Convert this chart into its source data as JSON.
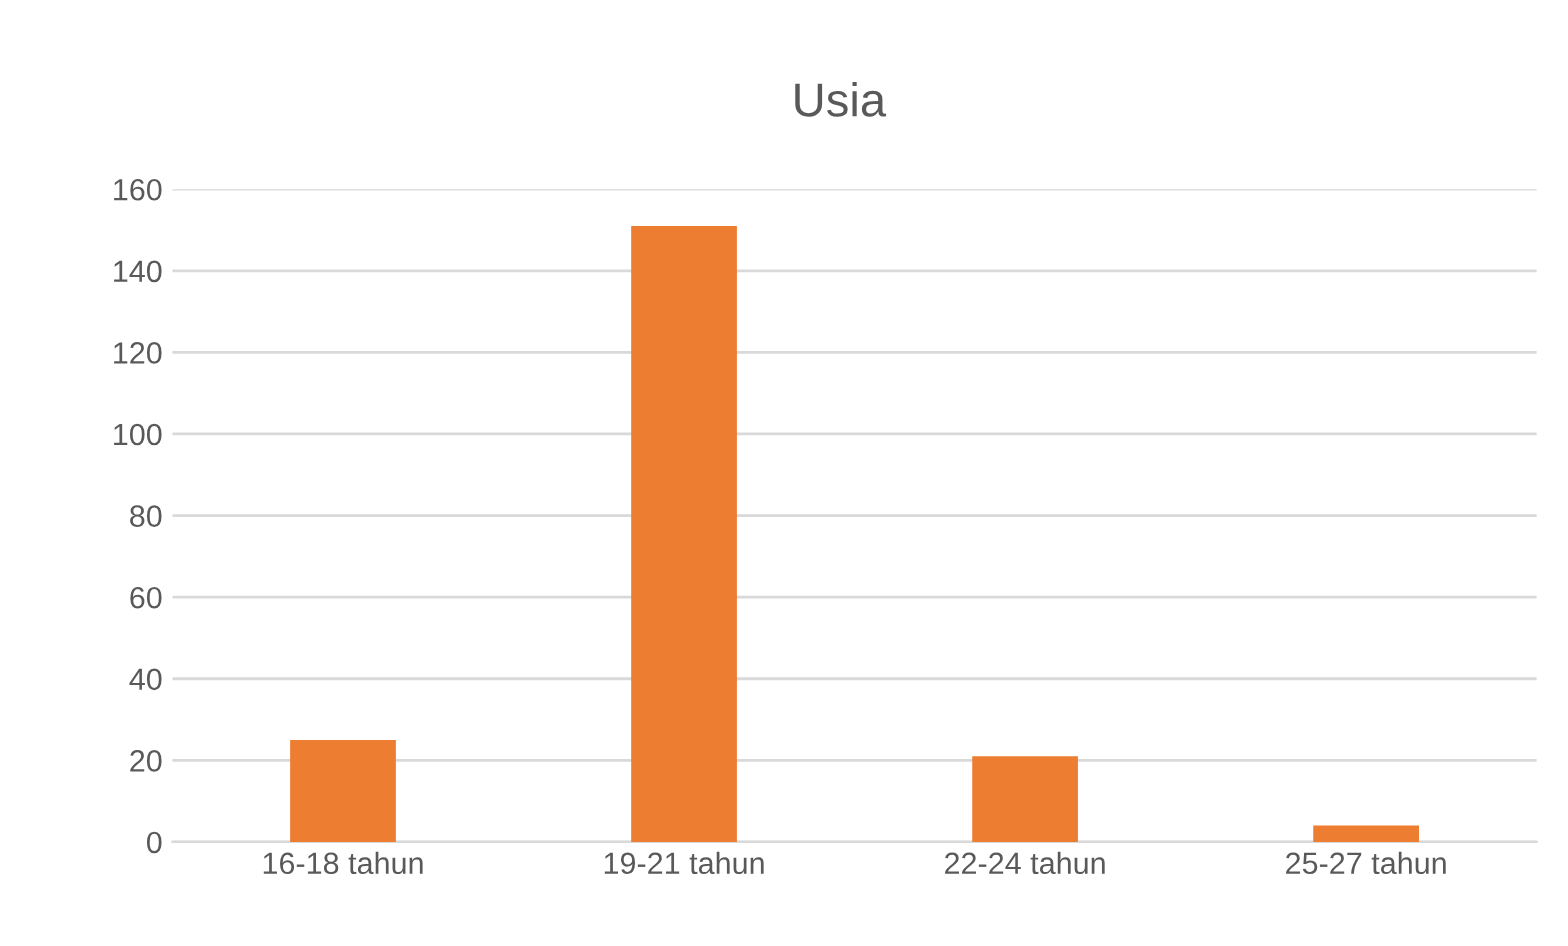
{
  "chart_data": {
    "type": "bar",
    "title": "Usia",
    "categories": [
      "16-18 tahun",
      "19-21 tahun",
      "22-24 tahun",
      "25-27 tahun"
    ],
    "values": [
      25,
      151,
      21,
      4
    ],
    "color": "#ed7d31",
    "ylim": [
      0,
      160
    ],
    "yticks": [
      0,
      20,
      40,
      60,
      80,
      100,
      120,
      140,
      160
    ],
    "grid": "y",
    "legend": false
  }
}
